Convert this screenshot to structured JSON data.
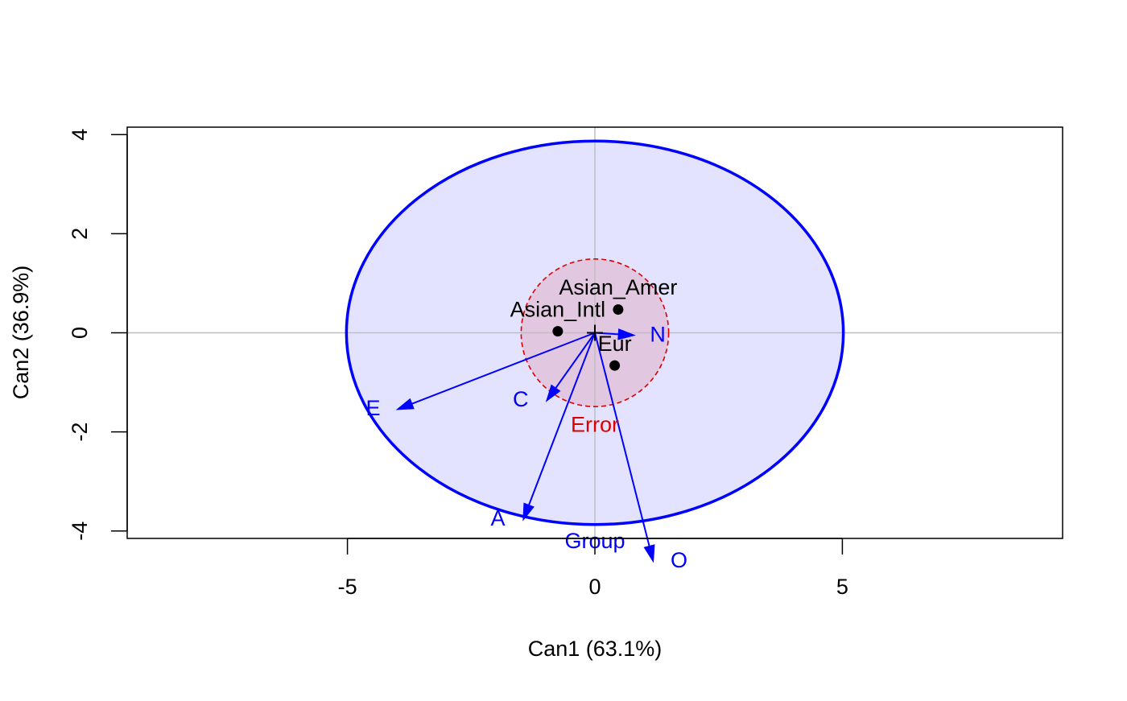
{
  "chart_data": {
    "type": "scatter",
    "title": "",
    "xlabel": "Can1 (63.1%)",
    "ylabel": "Can2 (36.9%)",
    "xlim": [
      -9.45,
      9.45
    ],
    "ylim": [
      -4.15,
      4.15
    ],
    "xticks": [
      -5,
      0,
      5
    ],
    "xtick_labels": [
      "-5",
      "0",
      "5"
    ],
    "yticks": [
      -4,
      -2,
      0,
      2,
      4
    ],
    "ytick_labels": [
      "-4",
      "-2",
      "0",
      "2",
      "4"
    ],
    "grand_mean": {
      "x": 0,
      "y": 0,
      "marker": "+"
    },
    "points": [
      {
        "label": "Asian_Amer",
        "x": 0.47,
        "y": 0.47,
        "label_x": 0.47,
        "label_y": 0.93
      },
      {
        "label": "Asian_Intl",
        "x": -0.75,
        "y": 0.03,
        "label_x": -0.75,
        "label_y": 0.49
      },
      {
        "label": "Eur",
        "x": 0.4,
        "y": -0.66,
        "label_x": 0.4,
        "label_y": -0.2
      }
    ],
    "ellipses": [
      {
        "name": "Group",
        "cx": 0,
        "cy": 0,
        "rx": 5.02,
        "ry": 3.87,
        "stroke": "#0000ff",
        "fill": "#0000ff",
        "fill_opacity": 0.11,
        "dashed": false,
        "label_x": 0,
        "label_y": -4.2
      },
      {
        "name": "Error",
        "cx": 0,
        "cy": 0,
        "rx": 1.49,
        "ry": 1.49,
        "stroke": "#dd0000",
        "fill": "#dd0000",
        "fill_opacity": 0.12,
        "dashed": true,
        "label_x": 0,
        "label_y": -1.85
      }
    ],
    "vectors": [
      {
        "name": "N",
        "x": 0.8,
        "y": -0.05,
        "label_x": 1.27,
        "label_y": -0.02
      },
      {
        "name": "E",
        "x": -4.0,
        "y": -1.55,
        "label_x": -4.48,
        "label_y": -1.5
      },
      {
        "name": "C",
        "x": -0.98,
        "y": -1.38,
        "label_x": -1.5,
        "label_y": -1.32
      },
      {
        "name": "A",
        "x": -1.45,
        "y": -3.78,
        "label_x": -1.96,
        "label_y": -3.73
      },
      {
        "name": "O",
        "x": 1.18,
        "y": -4.62,
        "label_x": 1.7,
        "label_y": -4.57
      }
    ],
    "grid": false,
    "reference_lines": [
      0
    ],
    "colors": {
      "vectors": "#0000ff",
      "points": "#000000",
      "error": "#dd0000",
      "reference": "#bebebe"
    }
  }
}
